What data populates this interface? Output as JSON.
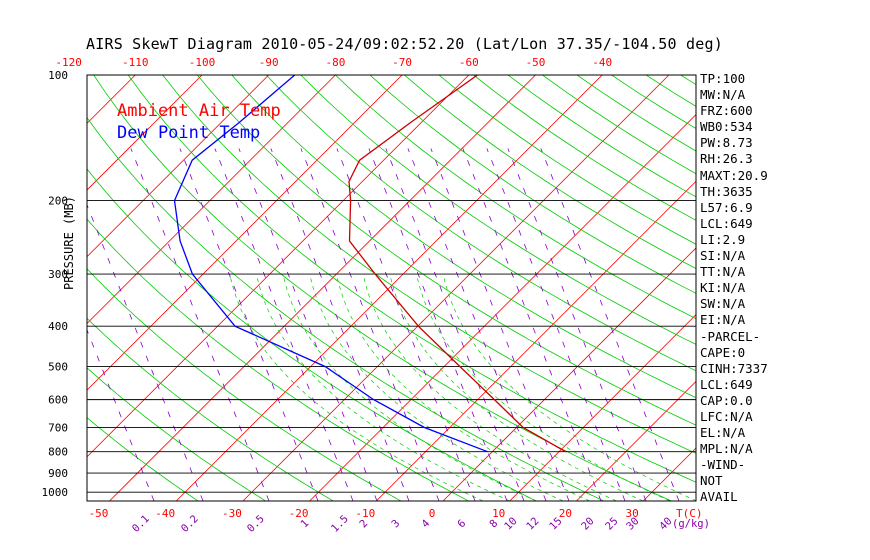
{
  "header": {
    "title": "AIRS SkewT Diagram 2010-05-24/09:02:52.20 (Lat/Lon 37.35/-104.50 deg)"
  },
  "legend": {
    "ambient": "Ambient Air Temp",
    "dewpoint": "Dew Point Temp"
  },
  "colors": {
    "ambient": "#cc0000",
    "dewpoint": "#0000ff",
    "isotherm": "#ff0000",
    "dry_adiabat": "#00cc00",
    "mixing_ratio": "#8800cc"
  },
  "chart_data": {
    "type": "line",
    "title": "AIRS SkewT Diagram 2010-05-24/09:02:52.20 (Lat/Lon 37.35/-104.50 deg)",
    "ylabel": "PRESSURE (MB)",
    "xlabel": "T(C)",
    "mixing_ratio_label": "(g/kg)",
    "pressure_ticks": [
      100,
      200,
      300,
      400,
      500,
      600,
      700,
      800,
      900,
      1000
    ],
    "top_temp_ticks": [
      -120,
      -110,
      -100,
      -90,
      -80,
      -70,
      -60,
      -50,
      -40
    ],
    "bottom_temp_ticks": [
      -50,
      -40,
      -30,
      -20,
      -10,
      0,
      10,
      20,
      30
    ],
    "mixing_ratio_ticks": [
      "0.1",
      "0.2",
      "0.5",
      "1",
      "1.5",
      "2",
      "3",
      "4",
      "6",
      "8",
      "10",
      "12",
      "15",
      "20",
      "25",
      "30",
      "40"
    ],
    "series": [
      {
        "name": "Ambient Air Temp",
        "points": [
          {
            "p": 100,
            "t": -58.7
          },
          {
            "p": 130,
            "t": -61.6
          },
          {
            "p": 160,
            "t": -63.6
          },
          {
            "p": 180,
            "t": -62.0
          },
          {
            "p": 200,
            "t": -58.9
          },
          {
            "p": 250,
            "t": -53.0
          },
          {
            "p": 300,
            "t": -44.2
          },
          {
            "p": 400,
            "t": -29.9
          },
          {
            "p": 500,
            "t": -17.6
          },
          {
            "p": 600,
            "t": -7.5
          },
          {
            "p": 700,
            "t": 1.0
          },
          {
            "p": 800,
            "t": 11.0
          }
        ]
      },
      {
        "name": "Dew Point Temp",
        "points": [
          {
            "p": 100,
            "t": -86.1
          },
          {
            "p": 130,
            "t": -87.3
          },
          {
            "p": 160,
            "t": -88.7
          },
          {
            "p": 200,
            "t": -85.3
          },
          {
            "p": 250,
            "t": -78.4
          },
          {
            "p": 300,
            "t": -71.6
          },
          {
            "p": 400,
            "t": -57.4
          },
          {
            "p": 500,
            "t": -37.8
          },
          {
            "p": 600,
            "t": -25.6
          },
          {
            "p": 700,
            "t": -13.8
          },
          {
            "p": 800,
            "t": -0.7
          }
        ]
      }
    ]
  },
  "stats": [
    "TP:100",
    "MW:N/A",
    "FRZ:600",
    "WB0:534",
    "PW:8.73",
    "RH:26.3",
    "MAXT:20.9",
    "TH:3635",
    "L57:6.9",
    "LCL:649",
    "LI:2.9",
    "SI:N/A",
    "TT:N/A",
    "KI:N/A",
    "SW:N/A",
    "EI:N/A",
    "-PARCEL-",
    "CAPE:0",
    "CINH:7337",
    "LCL:649",
    "CAP:0.0",
    "LFC:N/A",
    "EL:N/A",
    "MPL:N/A",
    "-WIND-",
    "NOT",
    "AVAIL"
  ]
}
